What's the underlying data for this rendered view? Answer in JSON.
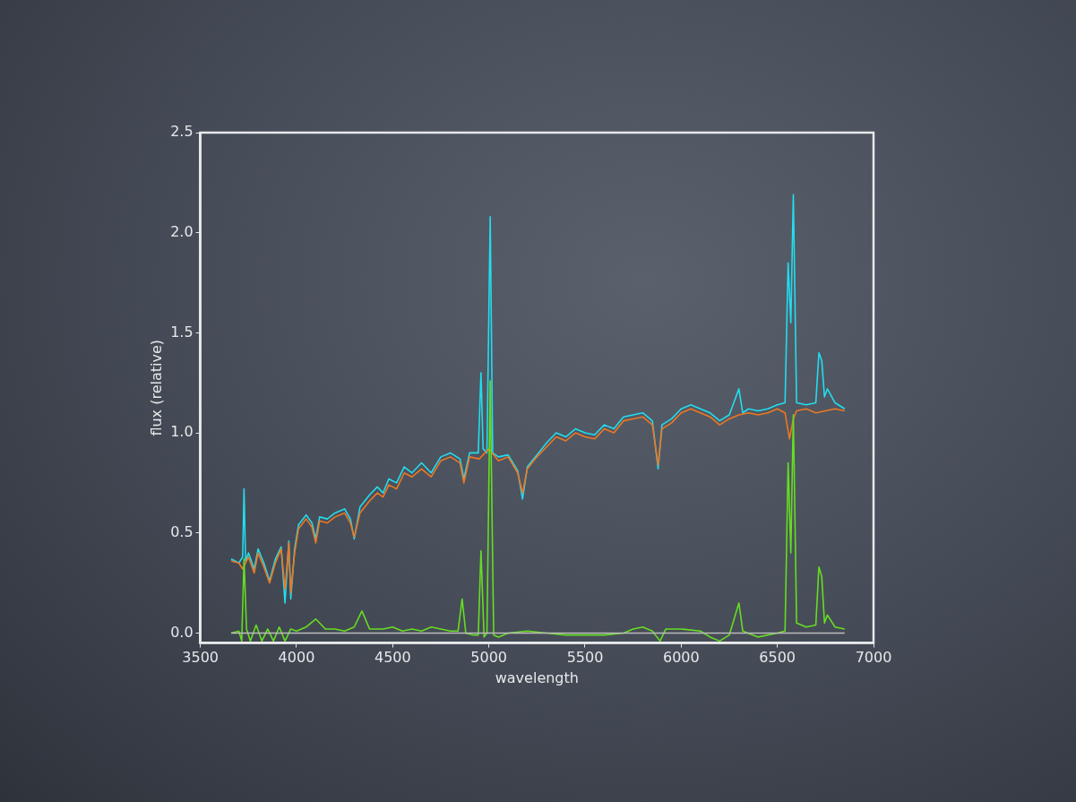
{
  "chart_data": {
    "type": "line",
    "xlabel": "wavelength",
    "ylabel": "flux (relative)",
    "xlim": [
      3500,
      7000
    ],
    "xticks": [
      3500,
      4000,
      4500,
      5000,
      5500,
      6000,
      6500,
      7000
    ],
    "ylim": [
      -0.05,
      2.5
    ],
    "yticks": [
      {
        "value": 0,
        "label": "0.0"
      },
      0.5,
      {
        "value": 1,
        "label": "1.0"
      },
      1.5,
      {
        "value": 2,
        "label": "2.0"
      },
      2.5
    ],
    "grid": false,
    "legend": false,
    "series": [
      {
        "color": "#22ddee",
        "x": [
          3660,
          3700,
          3720,
          3727,
          3735,
          3750,
          3780,
          3800,
          3830,
          3860,
          3890,
          3920,
          3940,
          3960,
          3970,
          3990,
          4010,
          4050,
          4080,
          4100,
          4120,
          4160,
          4200,
          4250,
          4280,
          4300,
          4330,
          4380,
          4420,
          4450,
          4480,
          4520,
          4560,
          4600,
          4650,
          4700,
          4750,
          4800,
          4850,
          4870,
          4900,
          4945,
          4959,
          4970,
          4990,
          5007,
          5020,
          5050,
          5100,
          5150,
          5175,
          5200,
          5250,
          5300,
          5350,
          5400,
          5450,
          5500,
          5550,
          5600,
          5650,
          5700,
          5750,
          5800,
          5850,
          5880,
          5900,
          5950,
          6000,
          6050,
          6100,
          6150,
          6200,
          6250,
          6300,
          6320,
          6350,
          6400,
          6450,
          6500,
          6540,
          6556,
          6570,
          6583,
          6600,
          6650,
          6700,
          6716,
          6731,
          6745,
          6760,
          6800,
          6850
        ],
        "values": [
          0.37,
          0.35,
          0.38,
          0.72,
          0.36,
          0.4,
          0.32,
          0.42,
          0.35,
          0.26,
          0.37,
          0.43,
          0.15,
          0.46,
          0.17,
          0.42,
          0.54,
          0.59,
          0.55,
          0.47,
          0.58,
          0.57,
          0.6,
          0.62,
          0.57,
          0.47,
          0.63,
          0.69,
          0.73,
          0.7,
          0.77,
          0.75,
          0.83,
          0.8,
          0.85,
          0.8,
          0.88,
          0.9,
          0.87,
          0.77,
          0.9,
          0.9,
          1.3,
          0.92,
          0.9,
          2.08,
          0.9,
          0.88,
          0.89,
          0.81,
          0.67,
          0.83,
          0.89,
          0.95,
          1.0,
          0.98,
          1.02,
          1.0,
          0.99,
          1.04,
          1.02,
          1.08,
          1.09,
          1.1,
          1.06,
          0.82,
          1.04,
          1.07,
          1.12,
          1.14,
          1.12,
          1.1,
          1.06,
          1.09,
          1.22,
          1.1,
          1.12,
          1.11,
          1.12,
          1.14,
          1.15,
          1.85,
          1.55,
          2.19,
          1.15,
          1.14,
          1.15,
          1.4,
          1.36,
          1.18,
          1.22,
          1.15,
          1.12
        ]
      },
      {
        "color": "#ee7722",
        "x": [
          3660,
          3700,
          3720,
          3750,
          3780,
          3800,
          3830,
          3860,
          3890,
          3920,
          3940,
          3960,
          3970,
          3990,
          4010,
          4050,
          4080,
          4100,
          4120,
          4160,
          4200,
          4250,
          4280,
          4300,
          4330,
          4380,
          4420,
          4450,
          4480,
          4520,
          4560,
          4600,
          4650,
          4700,
          4750,
          4800,
          4850,
          4870,
          4900,
          4950,
          5000,
          5050,
          5100,
          5150,
          5175,
          5200,
          5250,
          5300,
          5350,
          5400,
          5450,
          5500,
          5550,
          5600,
          5650,
          5700,
          5750,
          5800,
          5850,
          5880,
          5900,
          5950,
          6000,
          6050,
          6100,
          6150,
          6200,
          6250,
          6300,
          6350,
          6400,
          6450,
          6500,
          6540,
          6563,
          6583,
          6600,
          6650,
          6700,
          6750,
          6800,
          6850
        ],
        "values": [
          0.36,
          0.35,
          0.32,
          0.38,
          0.3,
          0.4,
          0.33,
          0.25,
          0.35,
          0.42,
          0.22,
          0.45,
          0.2,
          0.4,
          0.52,
          0.57,
          0.53,
          0.45,
          0.56,
          0.55,
          0.58,
          0.6,
          0.55,
          0.48,
          0.6,
          0.66,
          0.7,
          0.68,
          0.74,
          0.72,
          0.8,
          0.78,
          0.82,
          0.78,
          0.86,
          0.88,
          0.85,
          0.75,
          0.88,
          0.87,
          0.92,
          0.86,
          0.88,
          0.8,
          0.7,
          0.82,
          0.88,
          0.93,
          0.98,
          0.96,
          1.0,
          0.98,
          0.97,
          1.02,
          1.0,
          1.06,
          1.07,
          1.08,
          1.04,
          0.84,
          1.02,
          1.05,
          1.1,
          1.12,
          1.1,
          1.08,
          1.04,
          1.07,
          1.09,
          1.1,
          1.09,
          1.1,
          1.12,
          1.1,
          0.97,
          1.07,
          1.11,
          1.12,
          1.1,
          1.11,
          1.12,
          1.11
        ]
      },
      {
        "color": "#66dd22",
        "x": [
          3660,
          3700,
          3715,
          3727,
          3740,
          3760,
          3790,
          3820,
          3850,
          3880,
          3910,
          3940,
          3970,
          4000,
          4050,
          4100,
          4150,
          4200,
          4250,
          4300,
          4340,
          4380,
          4450,
          4500,
          4550,
          4600,
          4650,
          4700,
          4750,
          4800,
          4840,
          4861,
          4880,
          4920,
          4945,
          4959,
          4975,
          4990,
          5007,
          5025,
          5050,
          5100,
          5200,
          5300,
          5400,
          5500,
          5600,
          5700,
          5750,
          5800,
          5850,
          5890,
          5920,
          6000,
          6100,
          6150,
          6200,
          6250,
          6300,
          6320,
          6400,
          6500,
          6540,
          6556,
          6570,
          6583,
          6600,
          6650,
          6700,
          6716,
          6731,
          6745,
          6760,
          6800,
          6850
        ],
        "values": [
          0,
          0.01,
          -0.04,
          0.37,
          0.02,
          -0.04,
          0.04,
          -0.04,
          0.02,
          -0.04,
          0.03,
          -0.04,
          0.02,
          0.01,
          0.03,
          0.07,
          0.02,
          0.02,
          0.01,
          0.03,
          0.11,
          0.02,
          0.02,
          0.03,
          0.01,
          0.02,
          0.01,
          0.03,
          0.02,
          0.01,
          0.01,
          0.17,
          0.0,
          -0.01,
          -0.01,
          0.41,
          -0.02,
          0.0,
          1.26,
          -0.01,
          -0.02,
          0.0,
          0.01,
          0.0,
          -0.01,
          -0.01,
          -0.01,
          0.0,
          0.02,
          0.03,
          0.01,
          -0.04,
          0.02,
          0.02,
          0.01,
          -0.02,
          -0.04,
          -0.01,
          0.15,
          0.01,
          -0.02,
          0.0,
          0.01,
          0.85,
          0.4,
          1.09,
          0.05,
          0.03,
          0.04,
          0.33,
          0.28,
          0.05,
          0.09,
          0.03,
          0.02
        ]
      },
      {
        "color": "#bbbbbb",
        "x": [
          3660,
          6850
        ],
        "values": [
          0,
          0
        ]
      }
    ]
  }
}
